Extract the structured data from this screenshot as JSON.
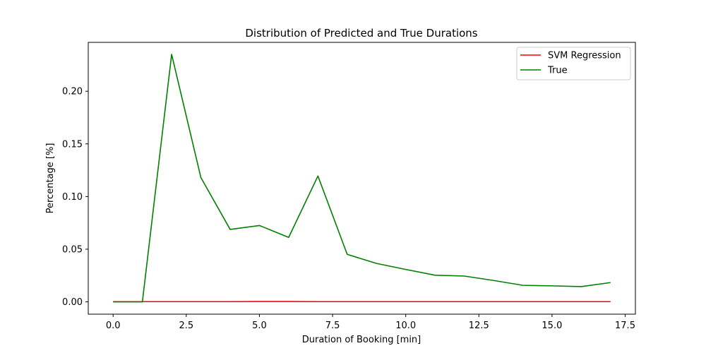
{
  "chart_data": {
    "type": "line",
    "title": "Distribution of Predicted and True Durations",
    "xlabel": "Duration of Booking [min]",
    "ylabel": "Percentage [%]",
    "xlim": [
      -0.85,
      17.85
    ],
    "ylim": [
      -0.0117,
      0.2464
    ],
    "xticks": [
      0.0,
      2.5,
      5.0,
      7.5,
      10.0,
      12.5,
      15.0,
      17.5
    ],
    "xtick_labels": [
      "0.0",
      "2.5",
      "5.0",
      "7.5",
      "10.0",
      "12.5",
      "15.0",
      "17.5"
    ],
    "yticks": [
      0.0,
      0.05,
      0.1,
      0.15,
      0.2
    ],
    "ytick_labels": [
      "0.00",
      "0.05",
      "0.10",
      "0.15",
      "0.20"
    ],
    "grid": false,
    "legend_position": "top-right",
    "x": [
      0,
      1,
      2,
      3,
      4,
      5,
      6,
      7,
      8,
      9,
      10,
      11,
      12,
      13,
      14,
      15,
      16,
      17
    ],
    "series": [
      {
        "name": "SVM Regression",
        "color": "#ff0000",
        "values": [
          0.0002,
          0.0002,
          0.0002,
          0.0002,
          0.0002,
          0.0003,
          0.0003,
          0.0002,
          0.0002,
          0.0002,
          0.0002,
          0.0002,
          0.0002,
          0.0002,
          0.0002,
          0.0002,
          0.0002,
          0.0002
        ]
      },
      {
        "name": "True",
        "color": "#008000",
        "values": [
          0.0,
          0.0,
          0.235,
          0.118,
          0.0688,
          0.0725,
          0.0612,
          0.1195,
          0.0451,
          0.0365,
          0.0308,
          0.0253,
          0.0245,
          0.0203,
          0.0157,
          0.0152,
          0.0145,
          0.0183
        ]
      }
    ]
  }
}
